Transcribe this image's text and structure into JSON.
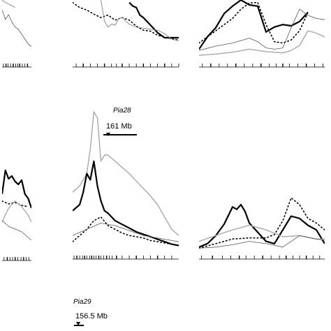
{
  "chart_data": [
    {
      "type": "line",
      "panel": "row1-col1",
      "series": [
        {
          "style": "thin-black",
          "x": [
            0,
            5,
            10,
            15,
            20,
            25,
            30,
            35,
            40,
            45
          ],
          "y": [
            8,
            6,
            7,
            5.5,
            4.5,
            4,
            3,
            2,
            1,
            0.5
          ]
        },
        {
          "style": "gray",
          "x": [
            0,
            5,
            10,
            15,
            20
          ],
          "y": [
            10,
            9.5,
            9.2,
            8.8,
            8.5
          ]
        }
      ],
      "markers": [
        2,
        6,
        9,
        13,
        17,
        21,
        24,
        27,
        31,
        35,
        39
      ]
    },
    {
      "type": "line",
      "panel": "row1-col2",
      "series": [
        {
          "style": "thick-black",
          "x": [
            80,
            85,
            90,
            95,
            100,
            110,
            120,
            130,
            140,
            150
          ],
          "y": [
            9.5,
            8.8,
            8.5,
            7,
            6.5,
            5,
            3.5,
            2.5,
            2.5,
            2.5
          ]
        },
        {
          "style": "dotted-black",
          "x": [
            0,
            10,
            20,
            30,
            40,
            50,
            60,
            70,
            80,
            90,
            100,
            110,
            120,
            130,
            140,
            150
          ],
          "y": [
            9.5,
            8.5,
            8,
            7.2,
            6.5,
            7,
            6,
            6.5,
            6,
            4.8,
            4,
            3.8,
            3,
            2.6,
            2.3,
            2
          ]
        },
        {
          "style": "thin-gray",
          "x": [
            40,
            45,
            50,
            55,
            60,
            65,
            70,
            75,
            80,
            90,
            100,
            110,
            120,
            130,
            140,
            150
          ],
          "y": [
            10,
            5.8,
            4.6,
            5.2,
            5,
            6.2,
            6.6,
            5.8,
            5.2,
            4.6,
            4.4,
            4.2,
            4,
            3.3,
            2.2,
            1.9
          ]
        }
      ],
      "markers": [
        5,
        15,
        25,
        35,
        45,
        55,
        62,
        70,
        80,
        90,
        100,
        110,
        120,
        130,
        140,
        150
      ]
    },
    {
      "type": "line",
      "panel": "row1-col3",
      "series": [
        {
          "style": "thick-black",
          "x": [
            0,
            10,
            20,
            30,
            40,
            50,
            60,
            70,
            80,
            90,
            100,
            110,
            120,
            130
          ],
          "y": [
            2,
            4,
            5.5,
            7.8,
            9,
            10,
            9.2,
            9,
            4.8,
            5.6,
            6,
            5.8,
            6.5,
            8
          ]
        },
        {
          "style": "dotted-black",
          "x": [
            0,
            10,
            20,
            30,
            40,
            50,
            60,
            70,
            80,
            90,
            100,
            110,
            120,
            130
          ],
          "y": [
            3,
            4,
            5,
            6,
            7,
            8.5,
            9.5,
            9.6,
            6,
            3.2,
            3,
            3.5,
            5,
            8
          ]
        },
        {
          "style": "gray",
          "x": [
            0,
            20,
            40,
            60,
            70,
            80,
            90,
            100,
            110,
            120,
            130,
            140,
            150
          ],
          "y": [
            1,
            1.2,
            1.5,
            2,
            1.8,
            1.6,
            1.5,
            1.4,
            1.8,
            2.6,
            5,
            4.6,
            4
          ]
        },
        {
          "style": "thin-black",
          "x": [
            0,
            20,
            40,
            60,
            70,
            80,
            90,
            100,
            110,
            120,
            130,
            140,
            150
          ],
          "y": [
            1.8,
            2.5,
            3,
            3.8,
            3.2,
            2.2,
            2,
            2.2,
            5.5,
            8.5,
            7.5,
            7,
            6.8
          ]
        }
      ],
      "markers": [
        4,
        14,
        24,
        34,
        44,
        54,
        64,
        74,
        84,
        92,
        100,
        108,
        118,
        128,
        138,
        148
      ]
    },
    {
      "type": "line",
      "panel": "row2-col1",
      "series": [
        {
          "style": "thick-black",
          "x": [
            0,
            5,
            10,
            15,
            20,
            25,
            30,
            35,
            40,
            45
          ],
          "y": [
            3.5,
            5.2,
            4.6,
            4.8,
            4.4,
            4.2,
            4.5,
            3.5,
            3.2,
            2.5
          ]
        },
        {
          "style": "dotted-black",
          "x": [
            0,
            10,
            20,
            30,
            40
          ],
          "y": [
            3,
            2.8,
            2.9,
            2.7,
            2.6
          ]
        },
        {
          "style": "gray",
          "x": [
            0,
            10,
            20,
            30,
            40,
            45
          ],
          "y": [
            1.5,
            2.5,
            3,
            2.6,
            2,
            1.5
          ]
        },
        {
          "style": "thin-black",
          "x": [
            0,
            10,
            20,
            30,
            40,
            45
          ],
          "y": [
            1.6,
            1.2,
            1,
            0.8,
            0.4,
            0.2
          ]
        }
      ],
      "markers": [
        3,
        8,
        12,
        16,
        20,
        24,
        29,
        33,
        37,
        41
      ]
    },
    {
      "type": "line",
      "panel": "row2-col2",
      "annotation": {
        "name": "Pia28",
        "position": "161 Mb"
      },
      "series": [
        {
          "style": "gray",
          "x": [
            0,
            10,
            20,
            25,
            30,
            35,
            40,
            45,
            50,
            60,
            70,
            80,
            90,
            100,
            110,
            120,
            130,
            140,
            150
          ],
          "y": [
            4.5,
            5,
            6,
            8,
            11,
            10.5,
            7,
            7.5,
            7.5,
            7,
            6.5,
            6,
            5.4,
            4.8,
            4.2,
            3.5,
            2.5,
            1.5,
            1
          ]
        },
        {
          "style": "thick-black",
          "x": [
            0,
            10,
            15,
            20,
            25,
            30,
            35,
            40,
            45,
            50,
            60,
            70,
            80,
            90,
            100,
            110,
            120,
            130,
            140,
            150
          ],
          "y": [
            3,
            3.5,
            4.5,
            6,
            5.5,
            7,
            5,
            3.8,
            3,
            2.8,
            2.2,
            1.9,
            1.6,
            1.3,
            1.1,
            0.9,
            0.7,
            0.5,
            0.3,
            0.2
          ]
        },
        {
          "style": "dotted-black",
          "x": [
            0,
            10,
            20,
            30,
            40,
            50,
            60,
            70,
            80,
            90,
            100,
            110,
            120,
            130,
            140,
            150
          ],
          "y": [
            0.5,
            1,
            1.5,
            2.2,
            2.5,
            1.8,
            1.5,
            1.2,
            1,
            0.9,
            0.8,
            0.6,
            0.5,
            0.4,
            0.3,
            0.2
          ]
        },
        {
          "style": "thin-black",
          "x": [
            0,
            20,
            40,
            60,
            80,
            100,
            120,
            140,
            150
          ],
          "y": [
            1,
            1.5,
            2,
            1.8,
            1.4,
            1,
            0.8,
            0.6,
            0.5
          ]
        }
      ],
      "markers": [
        2,
        6,
        10,
        14,
        17,
        20,
        24,
        27,
        30,
        33,
        37,
        40,
        44,
        48,
        52,
        56,
        62,
        70,
        80,
        90,
        100,
        110,
        120,
        130,
        140
      ]
    },
    {
      "type": "line",
      "panel": "row2-col3",
      "series": [
        {
          "style": "thick-black",
          "x": [
            0,
            10,
            20,
            30,
            40,
            45,
            50,
            55,
            60,
            70,
            80,
            90,
            100,
            110,
            120,
            130,
            140,
            150
          ],
          "y": [
            0.5,
            0.8,
            1.5,
            2.5,
            4,
            3.8,
            4.2,
            3.6,
            2.6,
            1.8,
            1,
            0.8,
            2,
            3.2,
            3,
            2.4,
            2,
            0.8
          ]
        },
        {
          "style": "dotted-black",
          "x": [
            0,
            20,
            40,
            60,
            80,
            90,
            100,
            110,
            120,
            130,
            140,
            150
          ],
          "y": [
            0.4,
            0.8,
            1.2,
            1.3,
            1.3,
            1.6,
            2.8,
            4.8,
            4.2,
            3,
            2.6,
            2
          ]
        },
        {
          "style": "gray",
          "x": [
            0,
            20,
            40,
            60,
            80,
            100,
            120,
            140,
            150
          ],
          "y": [
            1,
            1.5,
            2,
            2.4,
            2,
            1.4,
            1.5,
            1.2,
            1.2
          ]
        },
        {
          "style": "thin-black",
          "x": [
            0,
            20,
            40,
            60,
            80,
            100,
            120,
            140,
            150
          ],
          "y": [
            0.4,
            0.5,
            0.7,
            1,
            0.8,
            0.5,
            1.5,
            1.2,
            1.1
          ]
        }
      ],
      "markers": [
        3,
        16,
        28,
        38,
        48,
        56,
        66,
        76,
        86,
        96,
        104,
        112,
        120,
        128,
        136,
        144
      ]
    },
    {
      "type": "line",
      "panel": "row3-col2",
      "annotation": {
        "name": "Pia29",
        "position": "156.5 Mb"
      },
      "series": [],
      "markers": []
    }
  ]
}
